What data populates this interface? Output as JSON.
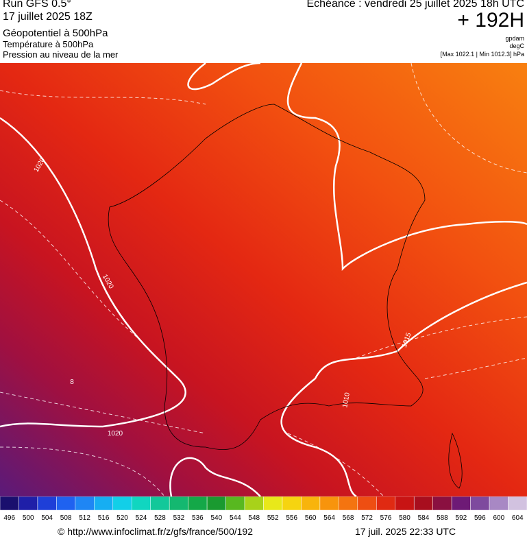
{
  "header": {
    "run": "Run GFS 0.5°",
    "date": "17 juillet 2025 18Z",
    "field1": "Géopotentiel à 500hPa",
    "field2": "Température à 500hPa",
    "field3": "Pression au niveau de la mer",
    "valid": "Echéance : vendredi 25 juillet 2025 18h UTC",
    "lead": "+ 192H",
    "unit1": "gpdam",
    "unit2": "degC",
    "extremes": "[Max 1022.1 | Min 1012.3] hPa"
  },
  "map": {
    "contour_labels": [
      "1020",
      "1020",
      "1020",
      "1015",
      "1010",
      "8"
    ]
  },
  "colorbar": {
    "labels": [
      "496",
      "500",
      "504",
      "508",
      "512",
      "516",
      "520",
      "524",
      "528",
      "532",
      "536",
      "540",
      "544",
      "548",
      "552",
      "556",
      "560",
      "564",
      "568",
      "572",
      "576",
      "580",
      "584",
      "588",
      "592",
      "596",
      "600",
      "604"
    ],
    "colors": [
      "#1a0f6e",
      "#1f1fa8",
      "#1e3fd8",
      "#1f62f0",
      "#1f86f4",
      "#16aef2",
      "#12cfe8",
      "#10d6c0",
      "#12c89a",
      "#14b870",
      "#14a848",
      "#1a9a30",
      "#58b820",
      "#a8d21a",
      "#e8e81a",
      "#f6d410",
      "#f8b40c",
      "#f8940c",
      "#f47410",
      "#ee4e12",
      "#e02a12",
      "#c81414",
      "#a80e1e",
      "#8a1040",
      "#6e1a76",
      "#7e4a9e",
      "#a888c4",
      "#d2c2e0"
    ]
  },
  "footer": {
    "url": "© http://www.infoclimat.fr/z/gfs/france/500/192",
    "stamp": "17 juil. 2025 22:33 UTC"
  }
}
